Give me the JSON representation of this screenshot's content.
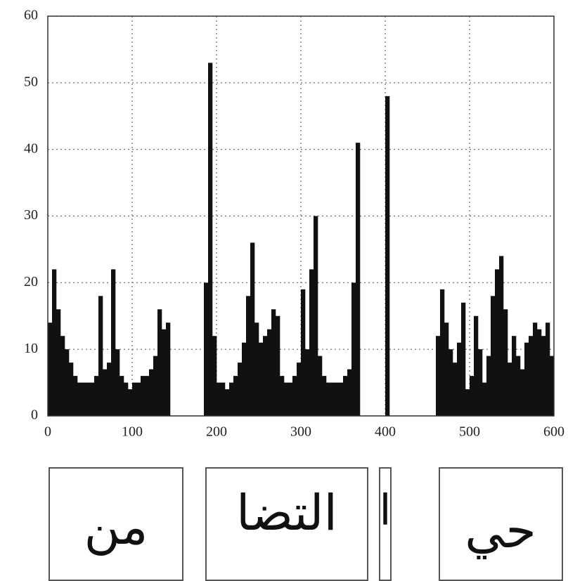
{
  "chart_data": {
    "type": "histogram",
    "bins": [
      0,
      5,
      10,
      15,
      20,
      25,
      30,
      35,
      40,
      45,
      50,
      55,
      60,
      65,
      70,
      75,
      80,
      85,
      90,
      95,
      100,
      105,
      110,
      115,
      120,
      125,
      130,
      135,
      140,
      145,
      150,
      155,
      160,
      165,
      170,
      175,
      180,
      185,
      190,
      195,
      200,
      205,
      210,
      215,
      220,
      225,
      230,
      235,
      240,
      245,
      250,
      255,
      260,
      265,
      270,
      275,
      280,
      285,
      290,
      295,
      300,
      305,
      310,
      315,
      320,
      325,
      330,
      335,
      340,
      345,
      350,
      355,
      360,
      365,
      370,
      375,
      380,
      385,
      390,
      395,
      400,
      405,
      410,
      415,
      420,
      425,
      430,
      435,
      440,
      445,
      450,
      455,
      460,
      465,
      470,
      475,
      480,
      485,
      490,
      495,
      500,
      505,
      510,
      515,
      520,
      525,
      530,
      535,
      540,
      545,
      550,
      555,
      560,
      565,
      570,
      575,
      580,
      585,
      590,
      595,
      600
    ],
    "values": [
      14,
      22,
      16,
      12,
      10,
      8,
      6,
      5,
      5,
      5,
      5,
      6,
      18,
      7,
      8,
      22,
      10,
      6,
      5,
      4,
      5,
      5,
      6,
      6,
      7,
      9,
      16,
      13,
      14,
      0,
      0,
      0,
      0,
      0,
      0,
      0,
      0,
      20,
      53,
      12,
      5,
      5,
      4,
      5,
      6,
      8,
      11,
      18,
      26,
      14,
      11,
      12,
      13,
      16,
      15,
      6,
      5,
      5,
      6,
      8,
      19,
      10,
      22,
      30,
      9,
      6,
      5,
      5,
      5,
      5,
      6,
      7,
      20,
      41,
      0,
      0,
      0,
      0,
      0,
      0,
      48,
      0,
      0,
      0,
      0,
      0,
      0,
      0,
      0,
      0,
      0,
      0,
      12,
      19,
      14,
      10,
      8,
      11,
      17,
      4,
      6,
      15,
      10,
      5,
      9,
      18,
      22,
      24,
      16,
      8,
      12,
      9,
      7,
      11,
      12,
      14,
      13,
      12,
      14,
      9
    ],
    "color": "#111111",
    "xlim": [
      0,
      600
    ],
    "xticks": [
      0,
      100,
      200,
      300,
      400,
      500,
      600
    ],
    "ylim": [
      0,
      60
    ],
    "yticks": [
      0,
      10,
      20,
      30,
      40,
      50,
      60
    ],
    "grid": true
  },
  "word_images": [
    "من",
    "التضا",
    "ا",
    "حي"
  ]
}
